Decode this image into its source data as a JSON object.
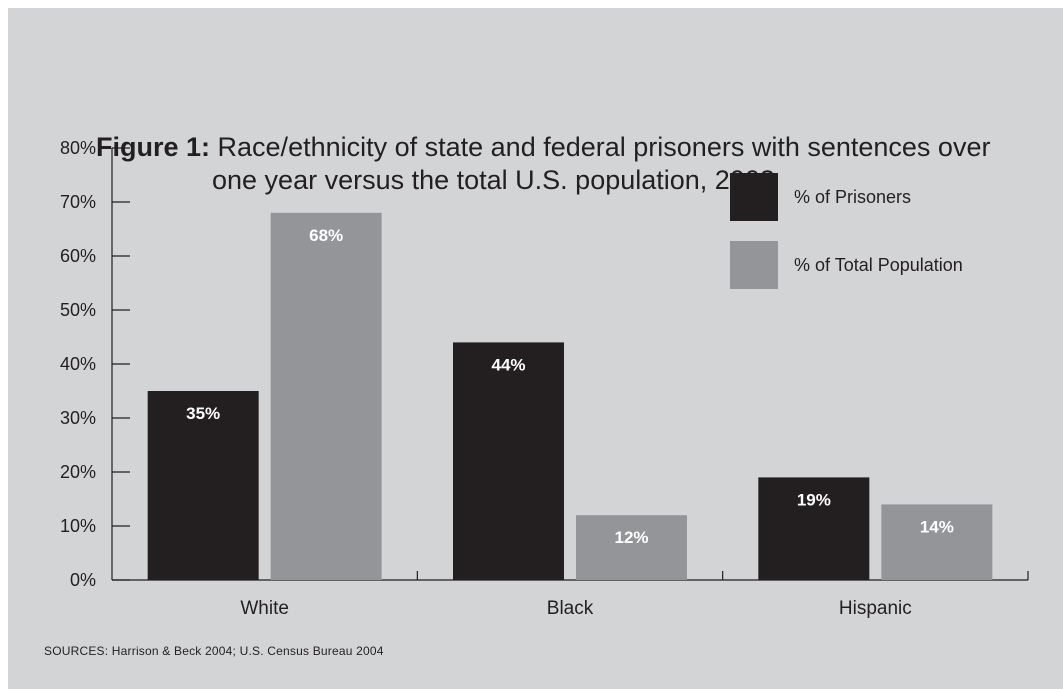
{
  "chart_data": {
    "type": "bar",
    "title_lead": "Figure 1:",
    "title": "Race/ethnicity of state and federal prisoners with sentences over one year versus the total U.S. population, 2003",
    "categories": [
      "White",
      "Black",
      "Hispanic"
    ],
    "series": [
      {
        "name": "% of Prisoners",
        "values": [
          35,
          44,
          19
        ],
        "color": "#231f20"
      },
      {
        "name": "% of Total Population",
        "values": [
          68,
          12,
          14
        ],
        "color": "#939598"
      }
    ],
    "value_labels": [
      [
        "35%",
        "44%",
        "19%"
      ],
      [
        "68%",
        "12%",
        "14%"
      ]
    ],
    "y_ticks": [
      "0%",
      "10%",
      "20%",
      "30%",
      "40%",
      "50%",
      "60%",
      "70%",
      "80%"
    ],
    "ylim": [
      0,
      80
    ],
    "legend_position": "top-right",
    "grid": false,
    "source": "SOURCES: Harrison & Beck 2004; U.S. Census Bureau 2004"
  }
}
